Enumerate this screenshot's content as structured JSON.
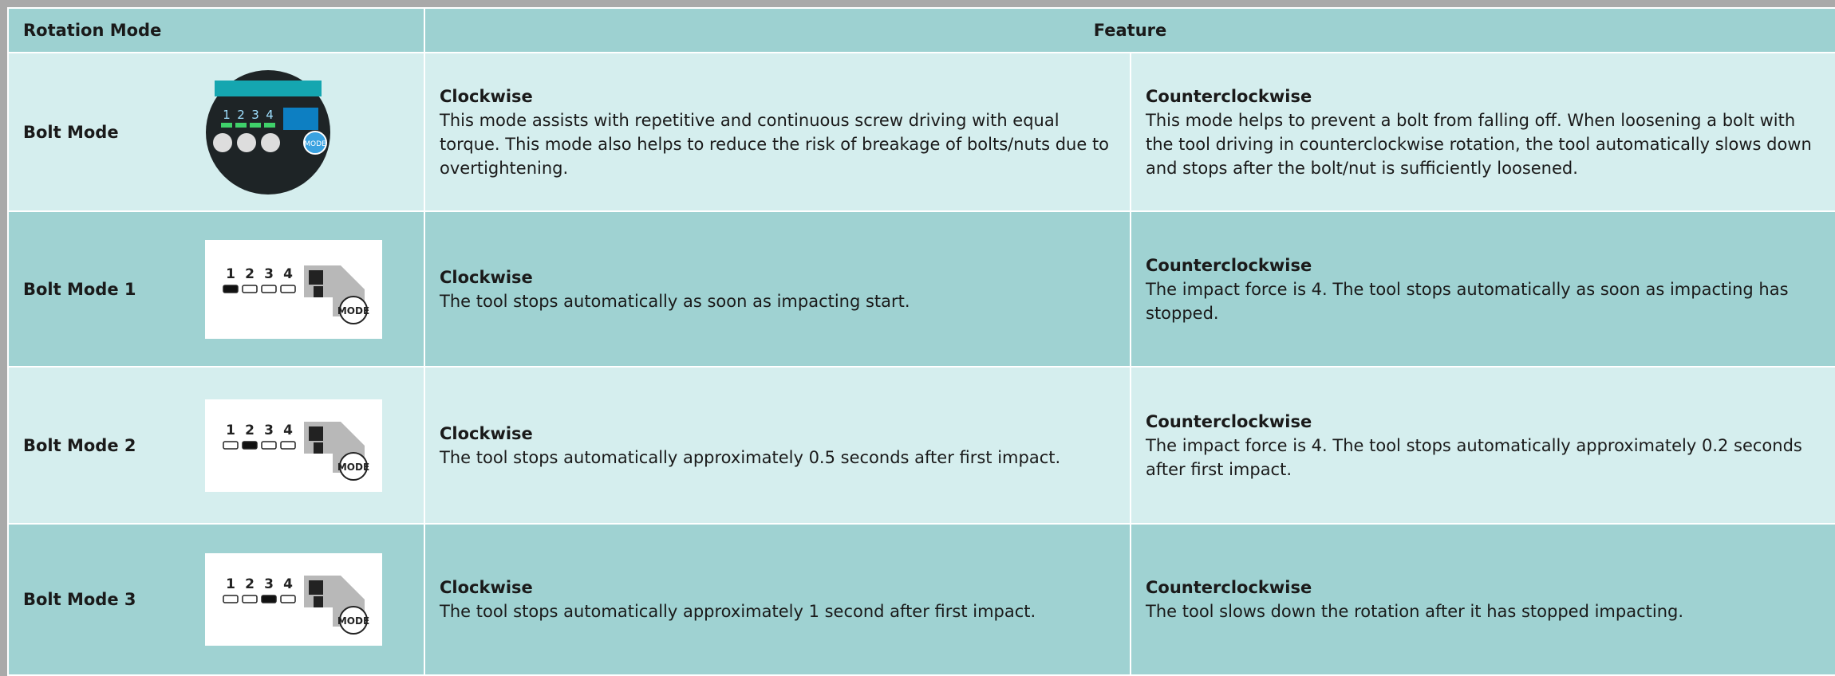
{
  "header": {
    "col1": "Rotation Mode",
    "col2": "Feature"
  },
  "indicator_labels": [
    "1",
    "2",
    "3",
    "4"
  ],
  "mode_button": "MODE",
  "rows": [
    {
      "name": "Bolt Mode",
      "cw_title": "Clockwise",
      "cw_text": "This mode assists with repetitive and continuous screw driving with equal torque. This mode also helps to reduce the risk of breakage of bolts/nuts due to overtightening.",
      "ccw_title": "Counterclockwise",
      "ccw_text": "This mode helps to prevent a bolt from falling off. When loosening a bolt with the tool driving in counterclockwise rotation, the tool automatically slows down and stops after the bolt/nut is sufficiently loosened."
    },
    {
      "name": "Bolt Mode 1",
      "active_level": 1,
      "cw_title": "Clockwise",
      "cw_text": "The tool stops automatically as soon as impacting start.",
      "ccw_title": "Counterclockwise",
      "ccw_text": "The impact force is 4. The tool stops automatically as soon as impacting has stopped."
    },
    {
      "name": "Bolt Mode 2",
      "active_level": 2,
      "cw_title": "Clockwise",
      "cw_text": "The tool stops automatically approximately 0.5 seconds after first impact.",
      "ccw_title": "Counterclockwise",
      "ccw_text": "The impact force is 4. The tool stops automatically approximately 0.2 seconds after first impact."
    },
    {
      "name": "Bolt Mode 3",
      "active_level": 3,
      "cw_title": "Clockwise",
      "cw_text": "The tool stops automatically approximately 1 second after first impact.",
      "ccw_title": "Counterclockwise",
      "ccw_text": "The tool slows down the rotation after it has stopped impacting."
    }
  ]
}
